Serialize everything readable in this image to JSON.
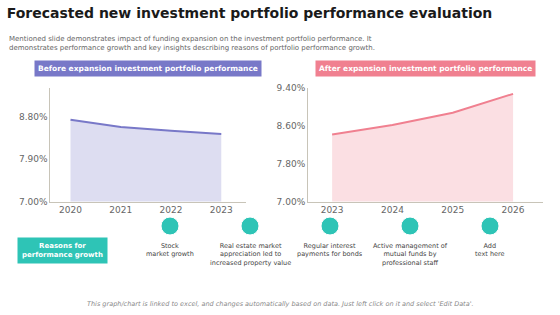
{
  "title": "Forecasted new investment portfolio performance evaluation",
  "subtitle": "Mentioned slide demonstrates impact of funding expansion on the investment portfolio performance. It demonstrates performance growth and key insights describing reasons of portfolio performance growth.",
  "annotations": {
    "reasons_label": "Reasons for\nperformance growth",
    "reasons": [
      "Stock\nmarket growth",
      "Real estate market\nappreciation led to\nincreased property value",
      "Regular interest\npayments for bonds",
      "Active management of\nmutual funds by\nprofessional staff",
      "Add\ntext here"
    ],
    "footer": "This graph/chart is linked to excel, and changes automatically based on data. Just left click on it and select 'Edit Data'."
  },
  "chart_data": [
    {
      "type": "line",
      "title": "Before expansion investment portfolio performance",
      "x": [
        2020,
        2021,
        2022,
        2023
      ],
      "values": [
        8.73,
        8.58,
        8.5,
        8.43
      ],
      "color": "#7878c8",
      "xlim": [
        2019.6,
        2023.5
      ],
      "xticks": [
        2020,
        2021,
        2022,
        2023
      ],
      "ylim": [
        7.0,
        9.4
      ],
      "yticks": [
        {
          "value": 7.0,
          "label": "7.00%"
        },
        {
          "value": 7.9,
          "label": "7.90%"
        },
        {
          "value": 8.8,
          "label": "8.80%"
        }
      ],
      "grid": false
    },
    {
      "type": "line",
      "title": "After expansion investment portfolio performance",
      "x": [
        2023,
        2024,
        2025,
        2026
      ],
      "values": [
        8.42,
        8.62,
        8.88,
        9.28
      ],
      "color": "#f08090",
      "xlim": [
        2022.6,
        2026.5
      ],
      "xticks": [
        2023,
        2024,
        2025,
        2026
      ],
      "ylim": [
        7.0,
        9.4
      ],
      "yticks": [
        {
          "value": 7.0,
          "label": "7.00%"
        },
        {
          "value": 7.8,
          "label": "7.80%"
        },
        {
          "value": 8.6,
          "label": "8.60%"
        },
        {
          "value": 9.4,
          "label": "9.40%"
        }
      ],
      "grid": false
    }
  ]
}
